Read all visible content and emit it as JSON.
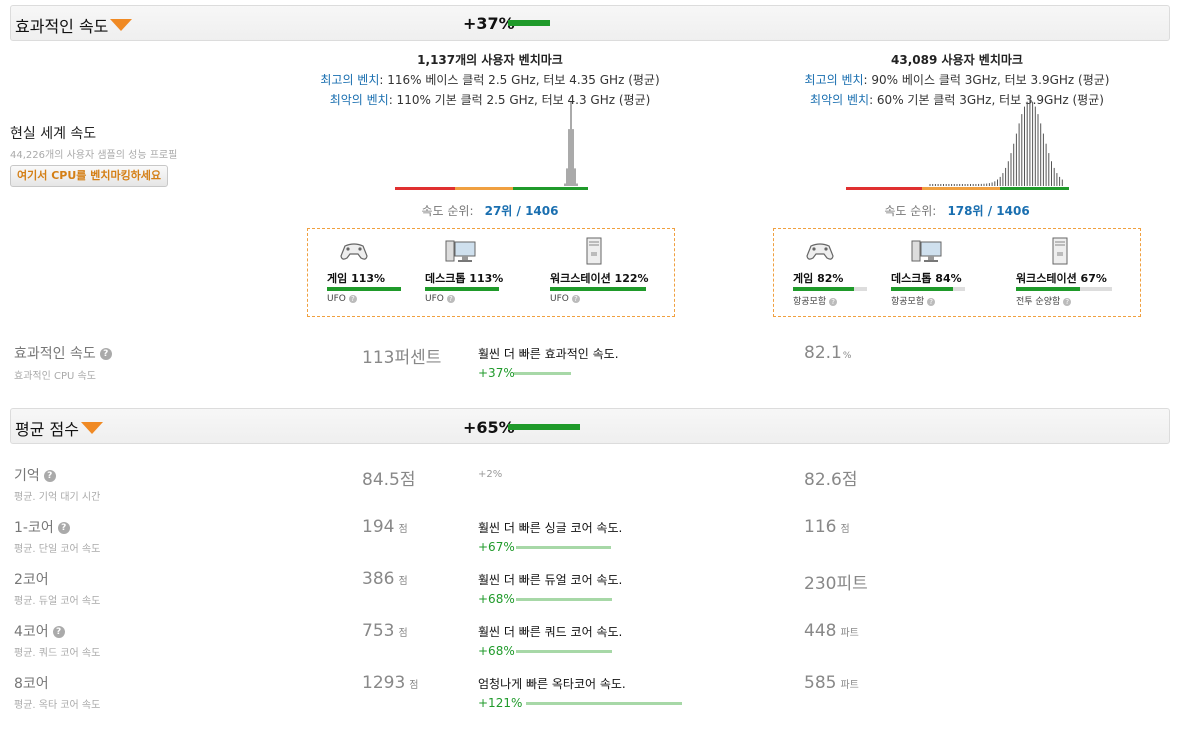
{
  "section1": {
    "title": "효과적인 속도",
    "delta": "+37%"
  },
  "section2": {
    "title": "평균 점수",
    "delta": "+65%"
  },
  "realworld": {
    "title": "현실 세계 속도",
    "sub": "44,226개의 사용자 샘플의 성능 프로필",
    "button": "여기서 CPU를 벤치마킹하세요"
  },
  "cpu_left": {
    "bench_count": "1,137개의 사용자 벤치마크",
    "best_label": "최고의 벤치",
    "best_text": ": 116% 베이스 클럭 2.5 GHz, 터보 4.35 GHz (평균)",
    "worst_label": "최악의 벤치",
    "worst_text": ": 110% 기본 클럭 2.5 GHz, 터보 4.3 GHz (평균)",
    "rank_label": "속도 순위:",
    "rank_value": "27위 / 1406",
    "categories": [
      {
        "icon": "gamepad-icon",
        "label": "게임 113%",
        "sub": "UFO",
        "fill": 1.0
      },
      {
        "icon": "desktop-icon",
        "label": "데스크톱 113%",
        "sub": "UFO",
        "fill": 1.0
      },
      {
        "icon": "workstation-icon",
        "label": "워크스테이션 122%",
        "sub": "UFO",
        "fill": 1.0
      }
    ]
  },
  "cpu_right": {
    "bench_count": "43,089 사용자 벤치마크",
    "best_label": "최고의 벤치",
    "best_text": ": 90% 베이스 클럭 3GHz, 터보 3.9GHz (평균)",
    "worst_label": "최악의 벤치",
    "worst_text": ": 60% 기본 클럭 3GHz, 터보 3.9GHz (평균)",
    "rank_label": "속도 순위:",
    "rank_value": "178위 / 1406",
    "categories": [
      {
        "icon": "gamepad-icon",
        "label": "게임 82%",
        "sub": "항공모함",
        "fill": 0.82
      },
      {
        "icon": "desktop-icon",
        "label": "데스크톱 84%",
        "sub": "항공모함",
        "fill": 0.84
      },
      {
        "icon": "workstation-icon",
        "label": "워크스테이션 67%",
        "sub": "전투 순양함",
        "fill": 0.67
      }
    ]
  },
  "effective": {
    "label": "효과적인 속도",
    "sub": "효과적인 CPU 속도",
    "left": "113퍼센트",
    "desc": "훨씬 더 빠른 효과적인 속도.",
    "pct": "+37%",
    "right": "82.1",
    "right_unit": "%"
  },
  "rows": [
    {
      "label": "기억",
      "help": true,
      "sub": "평균. 기억 대기 시간",
      "left": "84.5점",
      "left_unit": "",
      "desc": "",
      "pct": "+2%",
      "right": "82.6점",
      "right_unit": ""
    },
    {
      "label": "1-코어",
      "help": true,
      "sub": "평균. 단일 코어 속도",
      "left": "194",
      "left_unit": "점",
      "desc": "훨씬 더 빠른 싱글 코어 속도.",
      "pct": "+67%",
      "right": "116",
      "right_unit": "점"
    },
    {
      "label": "2코어",
      "help": false,
      "sub": "평균. 듀얼 코어 속도",
      "left": "386",
      "left_unit": "점",
      "desc": "훨씬 더 빠른 듀얼 코어 속도.",
      "pct": "+68%",
      "right": "230피트",
      "right_unit": ""
    },
    {
      "label": "4코어",
      "help": true,
      "sub": "평균. 쿼드 코어 속도",
      "left": "753",
      "left_unit": "점",
      "desc": "훨씬 더 빠른 쿼드 코어 속도.",
      "pct": "+68%",
      "right": "448",
      "right_unit": "파트"
    },
    {
      "label": "8코어",
      "help": false,
      "sub": "평균. 옥타 코어 속도",
      "left": "1293",
      "left_unit": "점",
      "desc": "엄청나게 빠른 옥타코어 속도.",
      "pct": "+121%",
      "right": "585",
      "right_unit": "파트"
    }
  ],
  "colors": {
    "green": "#1f9a2a",
    "orange": "#f08a24",
    "blue": "#1a6fb0",
    "red": "#e03030"
  }
}
